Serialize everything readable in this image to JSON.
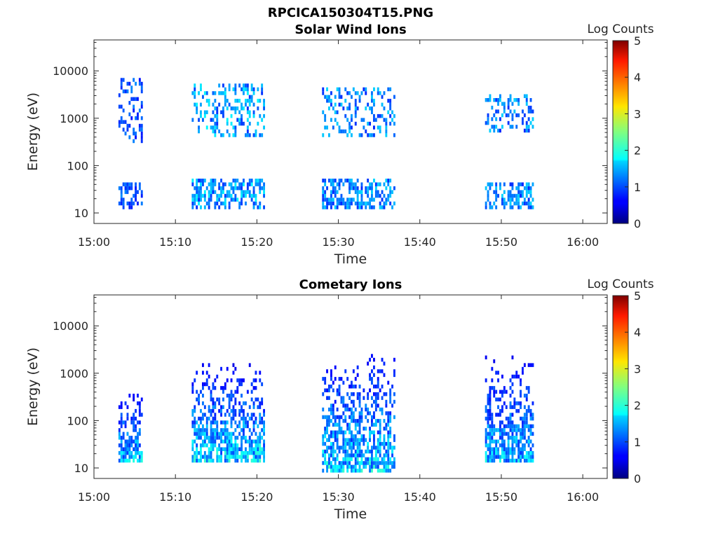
{
  "figure_title": "RPCICA150304T15.PNG",
  "chart_data": [
    {
      "type": "heatmap",
      "title": "Solar Wind Ions",
      "xlabel": "Time",
      "ylabel": "Energy (eV)",
      "x_scale": "time",
      "xlim": [
        "15:00",
        "16:03"
      ],
      "x_ticks": [
        "15:00",
        "15:10",
        "15:20",
        "15:30",
        "15:40",
        "15:50",
        "16:00"
      ],
      "y_scale": "log",
      "ylim": [
        6,
        45000
      ],
      "y_ticks": [
        10,
        100,
        1000,
        10000
      ],
      "y_tick_labels": [
        "10",
        "100",
        "1000",
        "10000"
      ],
      "colorbar": {
        "label": "Log Counts",
        "range": [
          0,
          5
        ],
        "ticks": [
          "0",
          "1",
          "2",
          "3",
          "4",
          "5"
        ],
        "colormap": "jet"
      },
      "bursts": [
        {
          "t": [
            "15:03",
            "15:06"
          ],
          "low_energy": [
            12,
            40
          ],
          "high_energy": [
            300,
            6000
          ],
          "peak_log_counts": 1.0
        },
        {
          "t": [
            "15:12",
            "15:21"
          ],
          "low_energy": [
            12,
            45
          ],
          "high_energy": [
            400,
            5000
          ],
          "peak_log_counts": 1.6
        },
        {
          "t": [
            "15:28",
            "15:37"
          ],
          "low_energy": [
            12,
            45
          ],
          "high_energy": [
            400,
            4000
          ],
          "peak_log_counts": 1.4
        },
        {
          "t": [
            "15:48",
            "15:54"
          ],
          "low_energy": [
            12,
            40
          ],
          "high_energy": [
            500,
            3000
          ],
          "peak_log_counts": 1.4
        }
      ]
    },
    {
      "type": "heatmap",
      "title": "Cometary Ions",
      "xlabel": "Time",
      "ylabel": "Energy (eV)",
      "x_scale": "time",
      "xlim": [
        "15:00",
        "16:03"
      ],
      "x_ticks": [
        "15:00",
        "15:10",
        "15:20",
        "15:30",
        "15:40",
        "15:50",
        "16:00"
      ],
      "y_scale": "log",
      "ylim": [
        6,
        45000
      ],
      "y_ticks": [
        10,
        100,
        1000,
        10000
      ],
      "y_tick_labels": [
        "10",
        "100",
        "1000",
        "10000"
      ],
      "colorbar": {
        "label": "Log Counts",
        "range": [
          0,
          5
        ],
        "ticks": [
          "0",
          "1",
          "2",
          "3",
          "4",
          "5"
        ],
        "colormap": "jet"
      },
      "bursts": [
        {
          "t": [
            "15:03",
            "15:06"
          ],
          "energy": [
            13,
            400
          ],
          "peak_log_counts": 1.8
        },
        {
          "t": [
            "15:12",
            "15:21"
          ],
          "energy": [
            13,
            1500
          ],
          "peak_log_counts": 2.0
        },
        {
          "t": [
            "15:28",
            "15:37"
          ],
          "energy": [
            8,
            2500
          ],
          "peak_log_counts": 2.0
        },
        {
          "t": [
            "15:48",
            "15:54"
          ],
          "energy": [
            13,
            2000
          ],
          "peak_log_counts": 1.8
        }
      ]
    }
  ]
}
